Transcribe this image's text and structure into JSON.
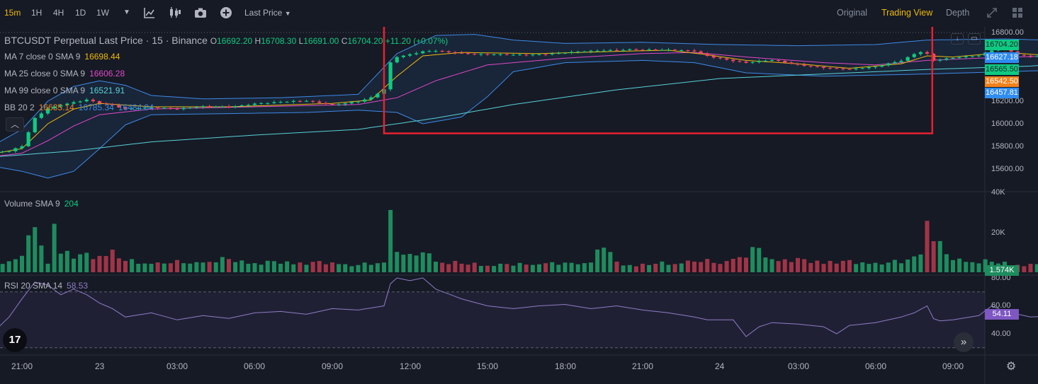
{
  "toolbar": {
    "intervals": [
      "15m",
      "1H",
      "4H",
      "1D",
      "1W"
    ],
    "active_interval": "15m",
    "price_type": "Last Price",
    "views": [
      "Original",
      "Trading View",
      "Depth"
    ],
    "active_view": "Trading View",
    "icons": [
      "chevron-down-icon",
      "indicators-icon",
      "candle-type-icon",
      "camera-icon",
      "add-icon",
      "expand-icon",
      "grid-icon"
    ]
  },
  "legend": {
    "title": "BTCUSDT Perpetual Last Price · 15 · Binance",
    "ohlc": {
      "o_label": "O",
      "o": "16692.20",
      "h_label": "H",
      "h": "16708.30",
      "l_label": "L",
      "l": "16691.00",
      "c_label": "C",
      "c": "16704.20",
      "change": "+11.20 (+0.07%)"
    },
    "ma7": {
      "label": "MA 7 close 0 SMA 9",
      "value": "16698.44"
    },
    "ma25": {
      "label": "MA 25 close 0 SMA 9",
      "value": "16606.28"
    },
    "ma99": {
      "label": "MA 99 close 0 SMA 9",
      "value": "16521.91"
    },
    "bb": {
      "label": "BB 20 2",
      "basis": "16635.14",
      "upper": "16785.34",
      "lower": "16484.94"
    },
    "volume": {
      "label": "Volume SMA 9",
      "value": "204"
    },
    "rsi": {
      "label": "RSI 20 SMA 14",
      "value": "58.53"
    }
  },
  "price_tags": {
    "last": "16704.20",
    "bb_upper": "16627.18",
    "ma7": "16565.50",
    "ma_orange": "16542.50",
    "ma99": "16457.81",
    "volume_last": "1.574K",
    "rsi_last": "54.11"
  },
  "colors": {
    "up": "#0ecb81",
    "down": "#f6465d",
    "volume_up": "#1e8c5e",
    "volume_down": "#a13447",
    "ma7": "#f0b90b",
    "ma25": "#e048c8",
    "ma99": "#57d2d8",
    "bb": "#3d8ae6",
    "rsi": "#8e7cc3",
    "highlight_box": "#e8212f",
    "accent": "#f0b90b"
  },
  "chart_data": {
    "type": "candlestick",
    "y_axis_price": {
      "ticks": [
        15600,
        15800,
        16000,
        16200,
        16400,
        16600,
        16800
      ],
      "tick_labels": [
        "15600.00",
        "15800.00",
        "16000.00",
        "16200.00",
        "16400.00",
        "16600.00",
        "16800.00"
      ],
      "range": [
        15450,
        16905
      ]
    },
    "y_axis_volume": {
      "ticks": [
        20000,
        40000
      ],
      "tick_labels": [
        "20K",
        "40K"
      ],
      "range": [
        0,
        40000
      ]
    },
    "y_axis_rsi": {
      "ticks": [
        40,
        60,
        80
      ],
      "tick_labels": [
        "40.00",
        "60.00",
        "80.00"
      ],
      "range": [
        25,
        88
      ],
      "bands": [
        30,
        70
      ]
    },
    "x_axis": {
      "labels": [
        "21:00",
        "23",
        "03:00",
        "06:00",
        "09:00",
        "12:00",
        "15:00",
        "18:00",
        "21:00",
        "24",
        "03:00",
        "06:00",
        "09:00"
      ],
      "first_bar_hour": 19.5,
      "bar_minutes": 15
    },
    "series_keypoints": {
      "price_close": [
        [
          19.5,
          15740
        ],
        [
          20.5,
          15755
        ],
        [
          21.0,
          15800
        ],
        [
          21.5,
          16050
        ],
        [
          22.0,
          16140
        ],
        [
          22.5,
          16170
        ],
        [
          23.0,
          16190
        ],
        [
          23.5,
          16210
        ],
        [
          24.0,
          16180
        ],
        [
          24.5,
          16160
        ],
        [
          25.0,
          16130
        ],
        [
          26.0,
          16150
        ],
        [
          27.0,
          16130
        ],
        [
          28.0,
          16150
        ],
        [
          29.0,
          16150
        ],
        [
          30.0,
          16180
        ],
        [
          31.0,
          16190
        ],
        [
          32.0,
          16200
        ],
        [
          33.0,
          16170
        ],
        [
          34.0,
          16200
        ],
        [
          34.5,
          16230
        ],
        [
          35.0,
          16300
        ],
        [
          35.15,
          16450
        ],
        [
          35.3,
          16580
        ],
        [
          35.8,
          16600
        ],
        [
          36.5,
          16640
        ],
        [
          37.0,
          16650
        ],
        [
          38.5,
          16610
        ],
        [
          40.0,
          16610
        ],
        [
          41.5,
          16620
        ],
        [
          43.0,
          16640
        ],
        [
          44.5,
          16660
        ],
        [
          46.0,
          16650
        ],
        [
          47.0,
          16640
        ],
        [
          47.5,
          16600
        ],
        [
          48.5,
          16560
        ],
        [
          49.0,
          16540
        ],
        [
          50.0,
          16560
        ],
        [
          51.0,
          16520
        ],
        [
          52.0,
          16500
        ],
        [
          53.0,
          16480
        ],
        [
          54.0,
          16500
        ],
        [
          55.0,
          16560
        ],
        [
          55.5,
          16620
        ],
        [
          55.9,
          16650
        ],
        [
          56.2,
          16560
        ],
        [
          57.0,
          16580
        ],
        [
          58.0,
          16600
        ],
        [
          58.5,
          16650
        ],
        [
          59.0,
          16680
        ],
        [
          59.5,
          16610
        ],
        [
          60.5,
          16590
        ],
        [
          61.5,
          16600
        ],
        [
          62.0,
          16610
        ],
        [
          62.5,
          16600
        ],
        [
          63.0,
          16650
        ],
        [
          63.5,
          16670
        ],
        [
          64.0,
          16680
        ],
        [
          64.5,
          16670
        ],
        [
          65.0,
          16680
        ],
        [
          65.5,
          16700
        ]
      ],
      "volume": [
        [
          19.5,
          1500
        ],
        [
          20.0,
          5000
        ],
        [
          21.0,
          8000
        ],
        [
          21.3,
          26000
        ],
        [
          21.6,
          18000
        ],
        [
          22.0,
          6000
        ],
        [
          22.25,
          28000
        ],
        [
          22.5,
          12000
        ],
        [
          23.0,
          8500
        ],
        [
          24.0,
          9500
        ],
        [
          24.4,
          12000
        ],
        [
          25.0,
          6000
        ],
        [
          26.0,
          5000
        ],
        [
          28.0,
          5500
        ],
        [
          29.0,
          7000
        ],
        [
          30.0,
          5000
        ],
        [
          31.0,
          5500
        ],
        [
          33.0,
          5000
        ],
        [
          34.0,
          4000
        ],
        [
          35.0,
          5000
        ],
        [
          35.25,
          37000
        ],
        [
          35.5,
          14000
        ],
        [
          36.0,
          8000
        ],
        [
          36.5,
          11000
        ],
        [
          37.0,
          7000
        ],
        [
          38.0,
          4500
        ],
        [
          40.0,
          4000
        ],
        [
          41.0,
          5000
        ],
        [
          42.0,
          4500
        ],
        [
          43.0,
          6000
        ],
        [
          43.5,
          15000
        ],
        [
          44.0,
          5000
        ],
        [
          45.0,
          4000
        ],
        [
          46.0,
          5000
        ],
        [
          47.0,
          6000
        ],
        [
          48.0,
          5500
        ],
        [
          49.0,
          9000
        ],
        [
          49.5,
          13000
        ],
        [
          50.0,
          7000
        ],
        [
          52.0,
          6000
        ],
        [
          54.0,
          5000
        ],
        [
          55.0,
          5500
        ],
        [
          55.75,
          10000
        ],
        [
          56.0,
          33000
        ],
        [
          56.3,
          16000
        ],
        [
          57.0,
          7000
        ],
        [
          58.0,
          6000
        ],
        [
          60.0,
          4000
        ],
        [
          62.0,
          3500
        ],
        [
          63.0,
          4500
        ],
        [
          63.75,
          8000
        ],
        [
          64.0,
          4000
        ],
        [
          65.5,
          3000
        ]
      ],
      "rsi": [
        [
          19.5,
          50
        ],
        [
          20.0,
          43
        ],
        [
          20.5,
          52
        ],
        [
          21.0,
          65
        ],
        [
          21.5,
          77
        ],
        [
          22.0,
          75
        ],
        [
          22.5,
          68
        ],
        [
          23.0,
          72
        ],
        [
          23.5,
          68
        ],
        [
          24.0,
          62
        ],
        [
          24.5,
          58
        ],
        [
          25.0,
          52
        ],
        [
          26.0,
          55
        ],
        [
          27.0,
          50
        ],
        [
          28.0,
          53
        ],
        [
          29.0,
          51
        ],
        [
          30.0,
          55
        ],
        [
          31.0,
          56
        ],
        [
          32.0,
          54
        ],
        [
          33.0,
          58
        ],
        [
          34.0,
          57
        ],
        [
          35.0,
          60
        ],
        [
          35.2,
          75
        ],
        [
          35.5,
          80
        ],
        [
          36.0,
          78
        ],
        [
          36.5,
          80
        ],
        [
          37.0,
          72
        ],
        [
          38.0,
          65
        ],
        [
          39.0,
          60
        ],
        [
          40.0,
          58
        ],
        [
          41.0,
          60
        ],
        [
          42.0,
          61
        ],
        [
          43.0,
          58
        ],
        [
          44.0,
          60
        ],
        [
          45.0,
          57
        ],
        [
          46.0,
          55
        ],
        [
          47.0,
          52
        ],
        [
          47.5,
          50
        ],
        [
          48.5,
          50
        ],
        [
          49.0,
          38
        ],
        [
          49.5,
          45
        ],
        [
          50.0,
          48
        ],
        [
          51.0,
          47
        ],
        [
          52.0,
          45
        ],
        [
          52.5,
          40
        ],
        [
          53.0,
          46
        ],
        [
          54.0,
          48
        ],
        [
          55.0,
          52
        ],
        [
          55.5,
          55
        ],
        [
          56.0,
          60
        ],
        [
          56.3,
          49
        ],
        [
          57.0,
          50
        ],
        [
          58.0,
          53
        ],
        [
          58.5,
          60
        ],
        [
          59.0,
          56
        ],
        [
          60.0,
          52
        ],
        [
          61.0,
          53
        ],
        [
          62.0,
          50
        ],
        [
          63.0,
          55
        ],
        [
          63.75,
          58
        ],
        [
          64.0,
          56
        ],
        [
          64.5,
          54
        ],
        [
          65.5,
          54
        ]
      ],
      "ma7": [
        [
          19.5,
          15720
        ],
        [
          21.0,
          15780
        ],
        [
          22.0,
          16000
        ],
        [
          23.0,
          16130
        ],
        [
          24.0,
          16180
        ],
        [
          26.0,
          16150
        ],
        [
          29.0,
          16150
        ],
        [
          33.0,
          16180
        ],
        [
          34.5,
          16210
        ],
        [
          35.5,
          16420
        ],
        [
          36.5,
          16600
        ],
        [
          38.0,
          16630
        ],
        [
          41.0,
          16620
        ],
        [
          44.0,
          16640
        ],
        [
          46.0,
          16650
        ],
        [
          47.5,
          16610
        ],
        [
          49.0,
          16560
        ],
        [
          51.0,
          16530
        ],
        [
          53.0,
          16490
        ],
        [
          55.0,
          16530
        ],
        [
          56.0,
          16600
        ],
        [
          57.0,
          16590
        ],
        [
          59.0,
          16630
        ],
        [
          61.0,
          16600
        ],
        [
          63.0,
          16640
        ],
        [
          65.5,
          16690
        ]
      ],
      "ma25": [
        [
          19.5,
          15700
        ],
        [
          21.0,
          15740
        ],
        [
          22.0,
          15850
        ],
        [
          23.0,
          15980
        ],
        [
          24.0,
          16080
        ],
        [
          26.0,
          16130
        ],
        [
          30.0,
          16150
        ],
        [
          34.0,
          16170
        ],
        [
          35.5,
          16230
        ],
        [
          37.0,
          16380
        ],
        [
          39.0,
          16520
        ],
        [
          42.0,
          16580
        ],
        [
          45.0,
          16620
        ],
        [
          47.0,
          16630
        ],
        [
          49.0,
          16590
        ],
        [
          52.0,
          16540
        ],
        [
          54.0,
          16520
        ],
        [
          56.0,
          16560
        ],
        [
          58.0,
          16580
        ],
        [
          61.0,
          16600
        ],
        [
          63.0,
          16610
        ],
        [
          65.5,
          16650
        ]
      ],
      "ma99": [
        [
          19.5,
          15700
        ],
        [
          23.0,
          15760
        ],
        [
          26.0,
          15840
        ],
        [
          30.0,
          15900
        ],
        [
          34.0,
          15950
        ],
        [
          37.0,
          16050
        ],
        [
          40.0,
          16170
        ],
        [
          44.0,
          16300
        ],
        [
          48.0,
          16400
        ],
        [
          52.0,
          16440
        ],
        [
          56.0,
          16480
        ],
        [
          60.0,
          16510
        ],
        [
          63.0,
          16560
        ],
        [
          65.5,
          16620
        ]
      ],
      "bb_upper": [
        [
          19.5,
          15760
        ],
        [
          21.0,
          15950
        ],
        [
          22.0,
          16200
        ],
        [
          23.0,
          16330
        ],
        [
          24.0,
          16380
        ],
        [
          25.0,
          16340
        ],
        [
          26.0,
          16250
        ],
        [
          28.0,
          16220
        ],
        [
          31.0,
          16230
        ],
        [
          34.0,
          16260
        ],
        [
          35.5,
          16620
        ],
        [
          37.0,
          16780
        ],
        [
          38.5,
          16790
        ],
        [
          40.0,
          16740
        ],
        [
          42.0,
          16710
        ],
        [
          45.0,
          16720
        ],
        [
          48.0,
          16700
        ],
        [
          51.0,
          16690
        ],
        [
          54.0,
          16700
        ],
        [
          56.0,
          16740
        ],
        [
          59.0,
          16750
        ],
        [
          62.0,
          16730
        ],
        [
          65.5,
          16740
        ]
      ],
      "bb_lower": [
        [
          19.5,
          15640
        ],
        [
          21.0,
          15580
        ],
        [
          22.0,
          15520
        ],
        [
          23.0,
          15580
        ],
        [
          24.0,
          15780
        ],
        [
          25.0,
          15990
        ],
        [
          26.0,
          16080
        ],
        [
          29.0,
          16090
        ],
        [
          32.0,
          16100
        ],
        [
          34.0,
          16120
        ],
        [
          35.5,
          16100
        ],
        [
          36.5,
          16000
        ],
        [
          38.0,
          16060
        ],
        [
          39.0,
          16240
        ],
        [
          40.0,
          16460
        ],
        [
          42.0,
          16540
        ],
        [
          45.0,
          16560
        ],
        [
          47.0,
          16540
        ],
        [
          49.0,
          16450
        ],
        [
          52.0,
          16420
        ],
        [
          54.0,
          16430
        ],
        [
          56.0,
          16440
        ],
        [
          59.0,
          16460
        ],
        [
          62.0,
          16480
        ],
        [
          63.5,
          16560
        ],
        [
          65.5,
          16600
        ]
      ]
    },
    "highlight_box": {
      "x_start_hour": 35.0,
      "x_end_hour": 56.2,
      "y_top_price": 16885,
      "y_bottom_price": 15915
    }
  }
}
